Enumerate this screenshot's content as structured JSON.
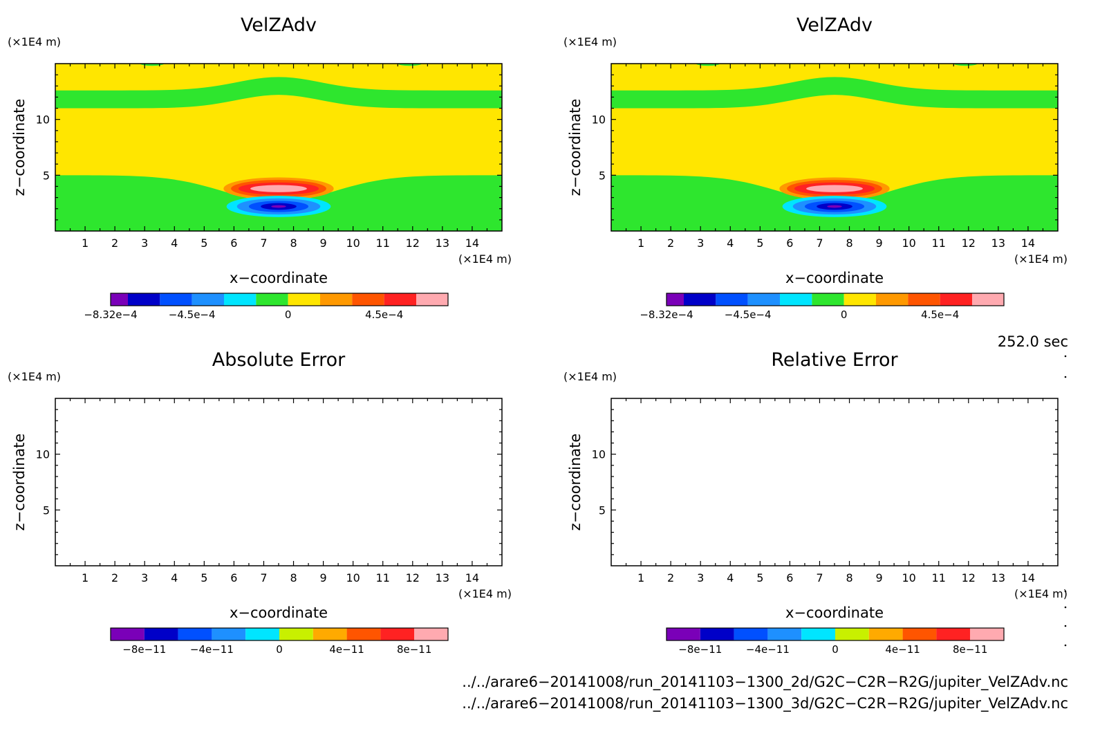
{
  "chart_data": [
    {
      "type": "heatmap",
      "title": "VelZAdv",
      "xlabel": "x−coordinate",
      "ylabel": "z−coordinate",
      "x_unit": "(×1E4 m)",
      "y_unit": "(×1E4 m)",
      "xlim": [
        0,
        15
      ],
      "ylim": [
        0,
        15
      ],
      "xticks": [
        "1",
        "2",
        "3",
        "4",
        "5",
        "6",
        "7",
        "8",
        "9",
        "10",
        "11",
        "12",
        "13",
        "14"
      ],
      "yticks": [
        "5",
        "10"
      ],
      "field": "filled-contour",
      "features": {
        "background_level": "0 to 1.5e-4 (yellow)",
        "green_band_z": [
          11,
          12.5
        ],
        "lower_green_region_top_z": 5,
        "positive_core_center": [
          7.5,
          3.8
        ],
        "negative_core_center": [
          7.5,
          2.2
        ]
      },
      "colorbar": {
        "labels": [
          "−8.32e−4",
          "−4.5e−4",
          "0",
          "4.5e−4"
        ],
        "colors": [
          "#7a00b8",
          "#0000c8",
          "#0050ff",
          "#1e90ff",
          "#00e5ff",
          "#2ee62e",
          "#ffe600",
          "#ff9900",
          "#ff5500",
          "#ff2222",
          "#ffaab0"
        ]
      }
    },
    {
      "type": "heatmap",
      "title": "VelZAdv",
      "xlabel": "x−coordinate",
      "ylabel": "z−coordinate",
      "x_unit": "(×1E4 m)",
      "y_unit": "(×1E4 m)",
      "xlim": [
        0,
        15
      ],
      "ylim": [
        0,
        15
      ],
      "xticks": [
        "1",
        "2",
        "3",
        "4",
        "5",
        "6",
        "7",
        "8",
        "9",
        "10",
        "11",
        "12",
        "13",
        "14"
      ],
      "yticks": [
        "5",
        "10"
      ],
      "field": "filled-contour",
      "features": {
        "background_level": "0 to 1.5e-4 (yellow)",
        "green_band_z": [
          11,
          12.5
        ],
        "lower_green_region_top_z": 5,
        "positive_core_center": [
          7.5,
          3.8
        ],
        "negative_core_center": [
          7.5,
          2.2
        ]
      },
      "colorbar": {
        "labels": [
          "−8.32e−4",
          "−4.5e−4",
          "0",
          "4.5e−4"
        ],
        "colors": [
          "#7a00b8",
          "#0000c8",
          "#0050ff",
          "#1e90ff",
          "#00e5ff",
          "#2ee62e",
          "#ffe600",
          "#ff9900",
          "#ff5500",
          "#ff2222",
          "#ffaab0"
        ]
      }
    },
    {
      "type": "heatmap",
      "title": "Absolute Error",
      "xlabel": "x−coordinate",
      "ylabel": "z−coordinate",
      "x_unit": "(×1E4 m)",
      "y_unit": "(×1E4 m)",
      "xlim": [
        0,
        15
      ],
      "ylim": [
        0,
        15
      ],
      "xticks": [
        "1",
        "2",
        "3",
        "4",
        "5",
        "6",
        "7",
        "8",
        "9",
        "10",
        "11",
        "12",
        "13",
        "14"
      ],
      "yticks": [
        "5",
        "10"
      ],
      "field": "empty",
      "colorbar": {
        "labels": [
          "−8e−11",
          "−4e−11",
          "0",
          "4e−11",
          "8e−11"
        ],
        "colors": [
          "#7a00b8",
          "#0000c8",
          "#0050ff",
          "#1e90ff",
          "#00e5ff",
          "#c8f000",
          "#ffaa00",
          "#ff5500",
          "#ff2222",
          "#ffaab0"
        ]
      }
    },
    {
      "type": "heatmap",
      "title": "Relative Error",
      "xlabel": "x−coordinate",
      "ylabel": "z−coordinate",
      "x_unit": "(×1E4 m)",
      "y_unit": "(×1E4 m)",
      "xlim": [
        0,
        15
      ],
      "ylim": [
        0,
        15
      ],
      "xticks": [
        "1",
        "2",
        "3",
        "4",
        "5",
        "6",
        "7",
        "8",
        "9",
        "10",
        "11",
        "12",
        "13",
        "14"
      ],
      "yticks": [
        "5",
        "10"
      ],
      "field": "empty",
      "colorbar": {
        "labels": [
          "−8e−11",
          "−4e−11",
          "0",
          "4e−11",
          "8e−11"
        ],
        "colors": [
          "#7a00b8",
          "#0000c8",
          "#0050ff",
          "#1e90ff",
          "#00e5ff",
          "#c8f000",
          "#ffaa00",
          "#ff5500",
          "#ff2222",
          "#ffaab0"
        ]
      }
    }
  ],
  "info": {
    "time": "252.0 sec",
    "file_2d": "../../arare6−20141008/run_20141103−1300_2d/G2C−C2R−R2G/jupiter_VelZAdv.nc",
    "file_3d": "../../arare6−20141008/run_20141103−1300_3d/G2C−C2R−R2G/jupiter_VelZAdv.nc"
  }
}
